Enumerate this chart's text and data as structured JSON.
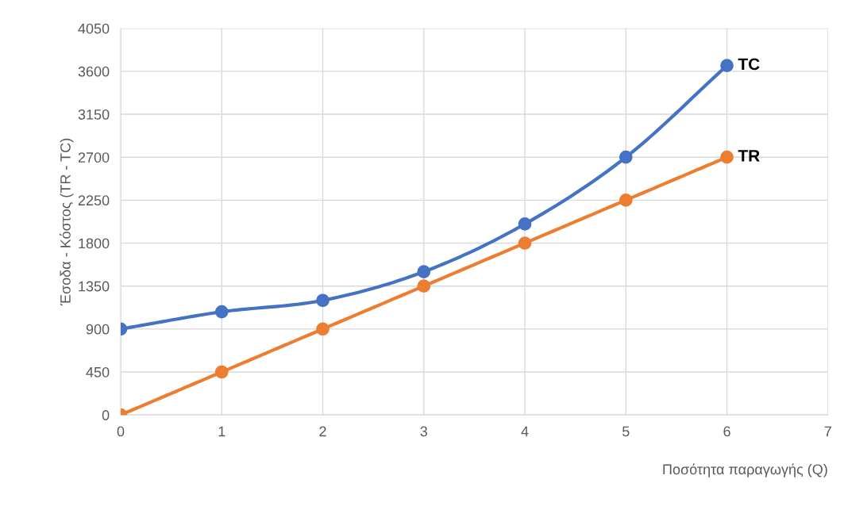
{
  "chart_data": {
    "type": "line",
    "xlabel": "Ποσότητα παραγωγής (Q)",
    "ylabel": "Έσοδα - Κόστος (TR - TC)",
    "x": [
      0,
      1,
      2,
      3,
      4,
      5,
      6
    ],
    "series": [
      {
        "name": "TC",
        "color": "#4472c4",
        "values": [
          900,
          1080,
          1200,
          1500,
          2000,
          2700,
          3660
        ]
      },
      {
        "name": "TR",
        "color": "#ed7d31",
        "values": [
          0,
          450,
          900,
          1350,
          1800,
          2250,
          2700
        ]
      }
    ],
    "xlim": [
      0,
      7
    ],
    "xticks": [
      0,
      1,
      2,
      3,
      4,
      5,
      6,
      7
    ],
    "ylim": [
      0,
      4050
    ],
    "yticks": [
      0,
      450,
      900,
      1350,
      1800,
      2250,
      2700,
      3150,
      3600,
      4050
    ],
    "grid": true,
    "marker": "circle",
    "line_style": "solid"
  }
}
